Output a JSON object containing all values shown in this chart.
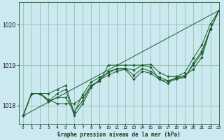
{
  "title": "Graphe pression niveau de la mer (hPa)",
  "bg_color": "#cce8f0",
  "grid_color": "#88bb99",
  "line_color": "#1a5c2a",
  "xlim": [
    -0.5,
    23
  ],
  "ylim": [
    1017.55,
    1020.55
  ],
  "yticks": [
    1018,
    1019,
    1020
  ],
  "xticks": [
    0,
    1,
    2,
    3,
    4,
    5,
    6,
    7,
    8,
    9,
    10,
    11,
    12,
    13,
    14,
    15,
    16,
    17,
    18,
    19,
    20,
    21,
    22,
    23
  ],
  "series": [
    [
      1017.75,
      1018.3,
      1018.3,
      1018.15,
      1018.05,
      1018.05,
      1018.05,
      1018.2,
      1018.5,
      1018.6,
      1019.0,
      1019.0,
      1019.0,
      1019.0,
      1019.0,
      1018.95,
      1018.65,
      1018.55,
      1018.7,
      1018.75,
      1018.9,
      1019.2,
      1019.9,
      1020.35
    ],
    [
      1017.75,
      1018.3,
      1018.3,
      1018.1,
      1018.3,
      1018.4,
      1017.75,
      1018.05,
      1018.45,
      1018.65,
      1018.75,
      1018.85,
      1018.9,
      1018.65,
      1018.85,
      1018.8,
      1018.65,
      1018.6,
      1018.65,
      1018.7,
      1019.05,
      1019.35,
      1019.9,
      1020.35
    ],
    [
      1017.75,
      1018.3,
      1018.3,
      1018.1,
      1018.2,
      1018.2,
      1017.85,
      1018.12,
      1018.5,
      1018.62,
      1018.85,
      1018.9,
      1018.92,
      1018.75,
      1018.92,
      1018.85,
      1018.7,
      1018.62,
      1018.68,
      1018.72,
      1019.0,
      1019.3,
      1019.88,
      1020.35
    ],
    [
      1017.75,
      1018.3,
      1018.3,
      1018.3,
      1018.4,
      1018.5,
      1017.82,
      1018.28,
      1018.58,
      1018.7,
      1018.8,
      1018.92,
      1018.92,
      1018.88,
      1019.0,
      1019.02,
      1018.82,
      1018.72,
      1018.72,
      1018.82,
      1019.18,
      1019.5,
      1020.02,
      1020.35
    ]
  ],
  "trend_line": [
    1017.75,
    1020.35
  ]
}
